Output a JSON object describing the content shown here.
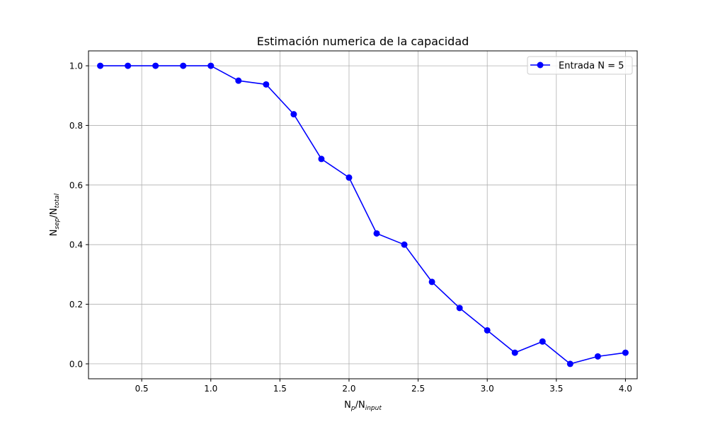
{
  "chart_data": {
    "type": "line",
    "title": "Estimación numerica de la capacidad",
    "xlabel": {
      "base": "N",
      "sub": "p",
      "mid": "/N",
      "sub2": "input"
    },
    "ylabel": {
      "base": "N",
      "sub": "sep",
      "mid": "/N",
      "sub2": "total"
    },
    "xlim": [
      0.115,
      4.085
    ],
    "ylim": [
      -0.05,
      1.05
    ],
    "xticks": [
      0.5,
      1.0,
      1.5,
      2.0,
      2.5,
      3.0,
      3.5,
      4.0
    ],
    "xtick_labels": [
      "0.5",
      "1.0",
      "1.5",
      "2.0",
      "2.5",
      "3.0",
      "3.5",
      "4.0"
    ],
    "yticks": [
      0.0,
      0.2,
      0.4,
      0.6,
      0.8,
      1.0
    ],
    "ytick_labels": [
      "0.0",
      "0.2",
      "0.4",
      "0.6",
      "0.8",
      "1.0"
    ],
    "grid": true,
    "legend_position": "top-right",
    "series": [
      {
        "name": "Entrada N = 5",
        "color": "#0000ff",
        "marker": "circle",
        "x": [
          0.2,
          0.4,
          0.6,
          0.8,
          1.0,
          1.2,
          1.4,
          1.6,
          1.8,
          2.0,
          2.2,
          2.4,
          2.6,
          2.8,
          3.0,
          3.2,
          3.4,
          3.6,
          3.8,
          4.0
        ],
        "y": [
          1.0,
          1.0,
          1.0,
          1.0,
          1.0,
          0.95,
          0.9375,
          0.8375,
          0.6875,
          0.625,
          0.4375,
          0.4,
          0.275,
          0.1875,
          0.1125,
          0.0375,
          0.075,
          0.0,
          0.025,
          0.0375
        ]
      }
    ]
  }
}
